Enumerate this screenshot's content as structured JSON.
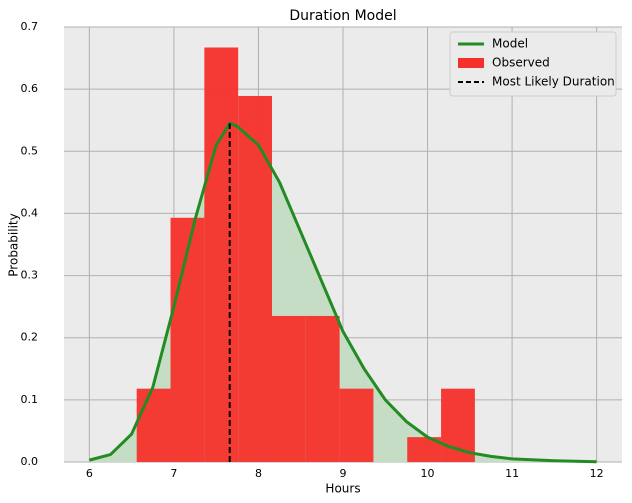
{
  "chart_data": {
    "type": "histogram",
    "title": "Duration Model",
    "xlabel": "Hours",
    "ylabel": "Probability",
    "bins": [
      6.56,
      6.96,
      7.36,
      7.76,
      8.16,
      8.56,
      8.96,
      9.36,
      9.76,
      10.16,
      10.56
    ],
    "counts": [
      0.118,
      0.393,
      0.667,
      0.589,
      0.235,
      0.235,
      0.118,
      0,
      0.04,
      0.118
    ],
    "hist_name": "Observed",
    "hist_color": "#f5302b",
    "model": {
      "name": "Model",
      "color": "#228b22",
      "fill": "#c5dcc5",
      "x": [
        6.0,
        6.25,
        6.5,
        6.75,
        7.0,
        7.25,
        7.5,
        7.66,
        7.75,
        8.0,
        8.25,
        8.5,
        8.75,
        9.0,
        9.25,
        9.5,
        9.75,
        10.0,
        10.25,
        10.5,
        10.75,
        11.0,
        11.5,
        12.0
      ],
      "values": [
        0.003,
        0.012,
        0.045,
        0.12,
        0.25,
        0.39,
        0.51,
        0.545,
        0.54,
        0.51,
        0.45,
        0.37,
        0.29,
        0.21,
        0.15,
        0.1,
        0.065,
        0.04,
        0.025,
        0.015,
        0.009,
        0.005,
        0.002,
        0.0005
      ]
    },
    "mode": {
      "name": "Most Likely Duration",
      "color": "#000000",
      "x": 7.66,
      "y": 0.545
    },
    "xlim": [
      5.7,
      12.3
    ],
    "ylim": [
      0,
      0.7
    ],
    "xticks": [
      6,
      7,
      8,
      9,
      10,
      11,
      12
    ],
    "yticks": [
      {
        "value": 0,
        "label": "0.0"
      },
      0.1,
      0.2,
      0.3,
      0.4,
      0.5,
      0.6,
      0.7
    ],
    "grid": true,
    "legend": "upper right"
  }
}
